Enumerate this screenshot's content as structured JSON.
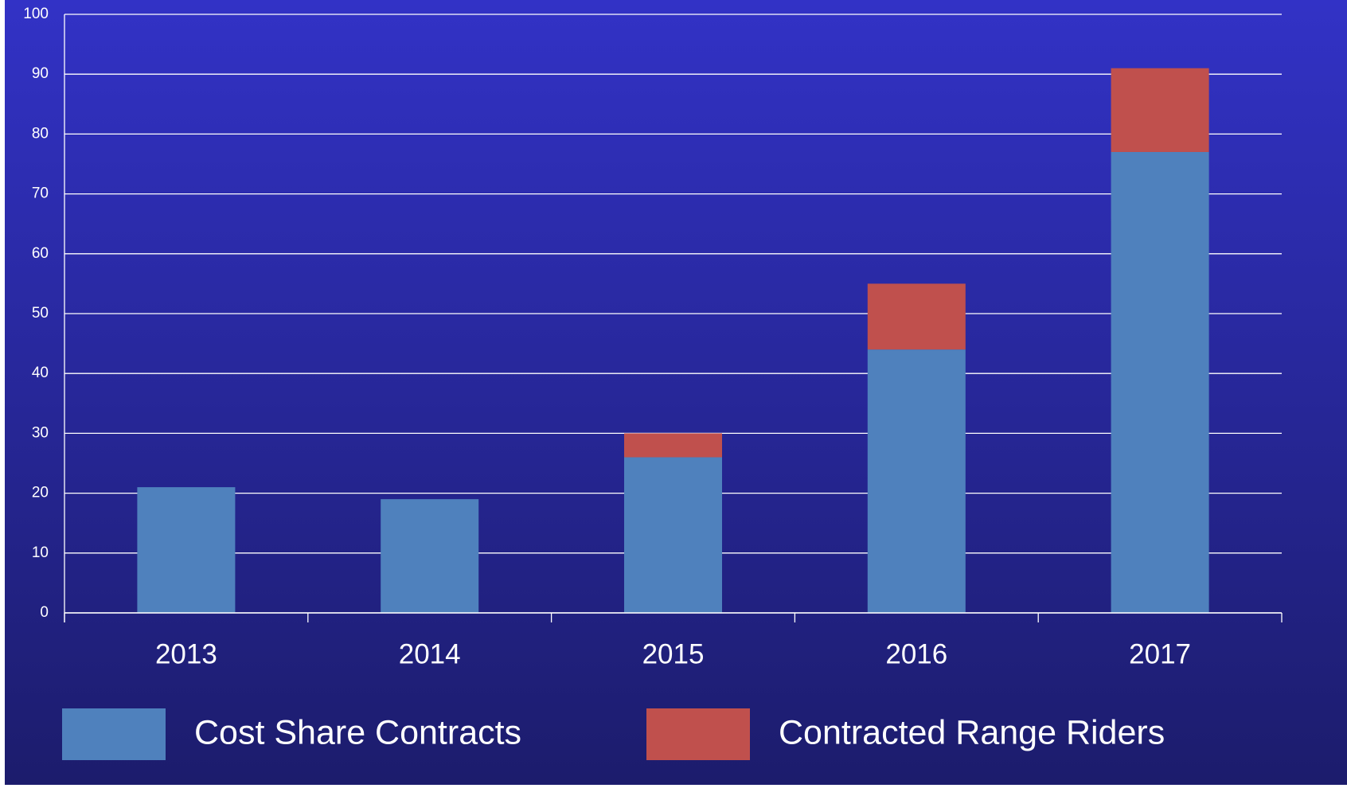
{
  "chart_data": {
    "type": "stacked_bar",
    "categories": [
      "2013",
      "2014",
      "2015",
      "2016",
      "2017"
    ],
    "series": [
      {
        "name": "Cost Share Contracts",
        "color": "#4f81bd",
        "values": [
          21,
          19,
          26,
          44,
          77
        ]
      },
      {
        "name": "Contracted Range Riders",
        "color": "#c0504d",
        "values": [
          0,
          0,
          4,
          11,
          14
        ]
      }
    ],
    "ylim": [
      0,
      100
    ],
    "yticks": [
      0,
      10,
      20,
      30,
      40,
      50,
      60,
      70,
      80,
      90,
      100
    ],
    "grid": true,
    "legend": "bottom"
  }
}
